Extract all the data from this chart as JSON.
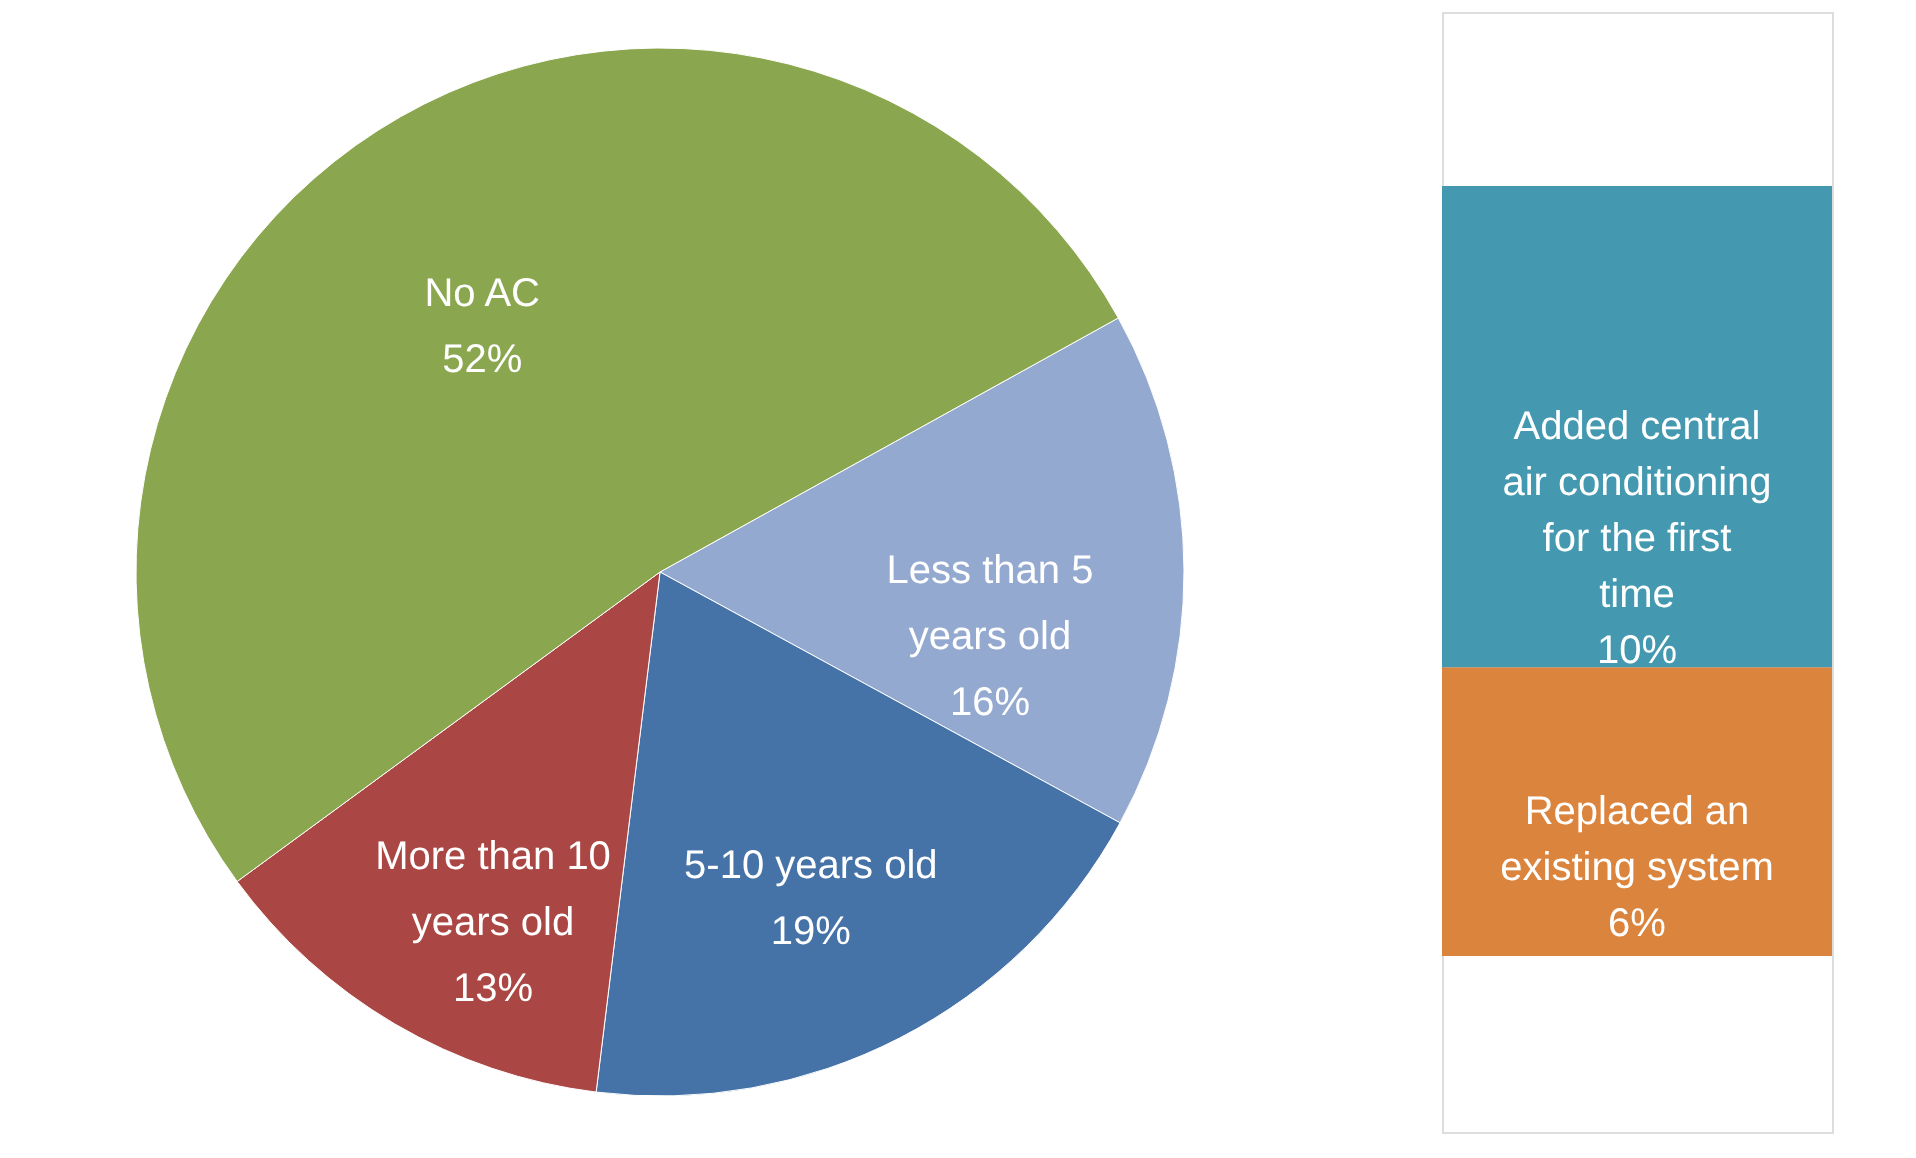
{
  "chart_data": [
    {
      "type": "pie",
      "categories": [
        "Less than 5 years old",
        "5-10 years old",
        "More than 10 years old",
        "No AC"
      ],
      "values": [
        16,
        19,
        13,
        52
      ],
      "colors": [
        "#94a9cf",
        "#4572a7",
        "#aa4744",
        "#8aa64e"
      ],
      "value_labels": [
        "16%",
        "19%",
        "13%",
        "52%"
      ],
      "legend": false
    },
    {
      "type": "bar",
      "stacked": true,
      "categories": [
        null
      ],
      "legend": false,
      "series": [
        {
          "name": "Replaced an existing system",
          "color": "#db843d",
          "values": [
            6
          ],
          "value_labels": [
            "6%"
          ]
        },
        {
          "name": "Added central air conditioning for the first time",
          "color": "#4499b0",
          "values": [
            10
          ],
          "value_labels": [
            "10%"
          ]
        }
      ]
    }
  ]
}
